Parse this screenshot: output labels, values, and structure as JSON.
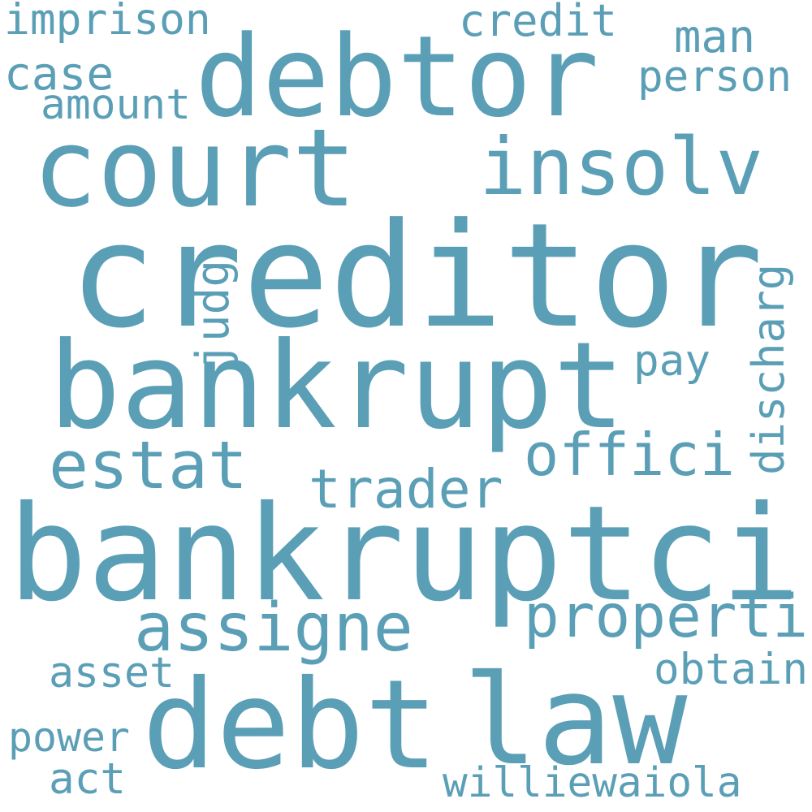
{
  "word_color": "#5b9fb7",
  "background_color": "#ffffff",
  "words": [
    {
      "name": "word-creditor",
      "text": "creditor"
    },
    {
      "name": "word-bankruptci",
      "text": "bankruptci"
    },
    {
      "name": "word-bankrupt",
      "text": "bankrupt"
    },
    {
      "name": "word-court",
      "text": "court"
    },
    {
      "name": "word-debtor",
      "text": "debtor"
    },
    {
      "name": "word-debt",
      "text": "debt"
    },
    {
      "name": "word-law",
      "text": "law"
    },
    {
      "name": "word-insolv",
      "text": "insolv"
    },
    {
      "name": "word-assigne",
      "text": "assigne"
    },
    {
      "name": "word-properti",
      "text": "properti"
    },
    {
      "name": "word-estat",
      "text": "estat"
    },
    {
      "name": "word-offici",
      "text": "offici"
    },
    {
      "name": "word-trader",
      "text": "trader"
    },
    {
      "name": "word-discharg",
      "text": "discharg"
    },
    {
      "name": "word-judg",
      "text": "judg"
    },
    {
      "name": "word-imprison",
      "text": "imprison"
    },
    {
      "name": "word-credit",
      "text": "credit"
    },
    {
      "name": "word-person",
      "text": "person"
    },
    {
      "name": "word-case",
      "text": "case"
    },
    {
      "name": "word-amount",
      "text": "amount"
    },
    {
      "name": "word-man",
      "text": "man"
    },
    {
      "name": "word-pay",
      "text": "pay"
    },
    {
      "name": "word-asset",
      "text": "asset"
    },
    {
      "name": "word-obtain",
      "text": "obtain"
    },
    {
      "name": "word-power",
      "text": "power"
    },
    {
      "name": "word-act",
      "text": "act"
    },
    {
      "name": "word-williewaiola",
      "text": "williewaiola"
    }
  ]
}
